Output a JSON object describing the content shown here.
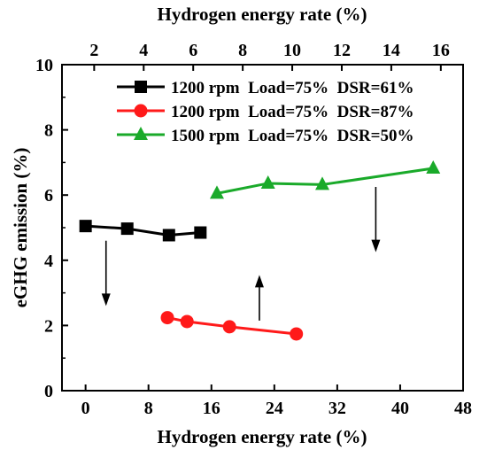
{
  "chart_data": {
    "type": "line",
    "xlabel": "Hydrogen energy rate (%)",
    "x2label": "Hydrogen energy rate (%)",
    "ylabel": "eGHG emission (%)",
    "xlim": [
      -3,
      48
    ],
    "ylim": [
      0,
      10
    ],
    "x2lim": [
      0.7,
      16.9
    ],
    "x_ticks": [
      0,
      8,
      16,
      24,
      32,
      40,
      48
    ],
    "y_ticks": [
      0,
      2,
      4,
      6,
      8,
      10
    ],
    "x2_ticks": [
      2,
      4,
      6,
      8,
      10,
      12,
      14,
      16
    ],
    "grid": false,
    "legend_position": "top-right",
    "series": [
      {
        "name": "1200 rpm  Load=75%  DSR=61%",
        "marker": "square",
        "color": "#000000",
        "x": [
          0,
          5.3,
          10.6,
          14.6
        ],
        "y": [
          5.05,
          4.97,
          4.77,
          4.85
        ]
      },
      {
        "name": "1200 rpm  Load=75%  DSR=87%",
        "marker": "circle",
        "color": "#ff1a1a",
        "x": [
          10.4,
          12.9,
          18.3,
          26.8
        ],
        "y": [
          2.24,
          2.12,
          1.96,
          1.74
        ]
      },
      {
        "name": "1500 rpm  Load=75%  DSR=50%",
        "marker": "triangle",
        "color": "#1aaa2a",
        "x": [
          16.7,
          23.2,
          30.1,
          44.2
        ],
        "y": [
          6.05,
          6.36,
          6.32,
          6.82
        ]
      }
    ],
    "annotations": [
      {
        "type": "arrow",
        "direction": "down",
        "x": 2.6,
        "y_from": 4.6,
        "y_to": 2.6
      },
      {
        "type": "arrow",
        "direction": "up",
        "x": 22.1,
        "y_from": 2.15,
        "y_to": 3.55
      },
      {
        "type": "arrow",
        "direction": "down",
        "x": 36.9,
        "y_from": 6.25,
        "y_to": 4.25
      }
    ]
  }
}
